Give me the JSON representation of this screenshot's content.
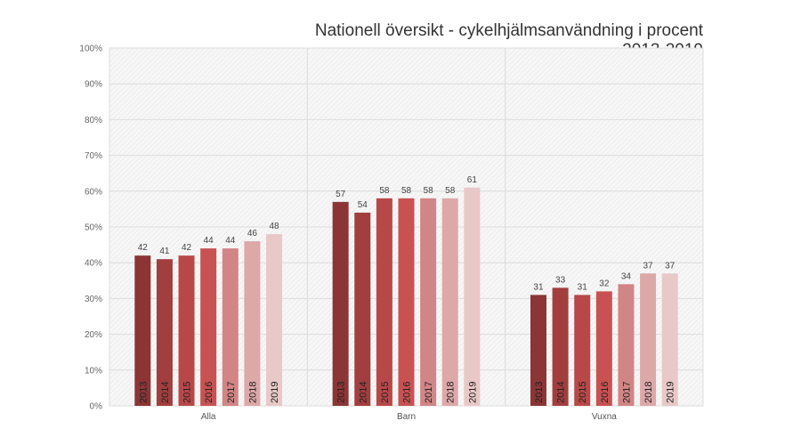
{
  "chart_data": {
    "type": "bar",
    "title": "Nationell översikt - cykelhjälmsanvändning i procent 2013-2019",
    "xlabel": "",
    "ylabel": "",
    "ylim": [
      0,
      100
    ],
    "y_ticks": [
      "0%",
      "10%",
      "20%",
      "30%",
      "40%",
      "50%",
      "60%",
      "70%",
      "80%",
      "90%",
      "100%"
    ],
    "grid": true,
    "categories": [
      "Alla",
      "Barn",
      "Vuxna"
    ],
    "series": [
      {
        "name": "2013",
        "color": "#8b3535",
        "values": [
          42,
          57,
          31
        ]
      },
      {
        "name": "2014",
        "color": "#a23e3e",
        "values": [
          41,
          54,
          33
        ]
      },
      {
        "name": "2015",
        "color": "#b84848",
        "values": [
          42,
          58,
          31
        ]
      },
      {
        "name": "2016",
        "color": "#c85252",
        "values": [
          44,
          58,
          32
        ]
      },
      {
        "name": "2017",
        "color": "#d28585",
        "values": [
          44,
          58,
          34
        ]
      },
      {
        "name": "2018",
        "color": "#dda8a8",
        "values": [
          46,
          58,
          37
        ]
      },
      {
        "name": "2019",
        "color": "#e9c8c8",
        "values": [
          48,
          61,
          37
        ]
      }
    ]
  }
}
